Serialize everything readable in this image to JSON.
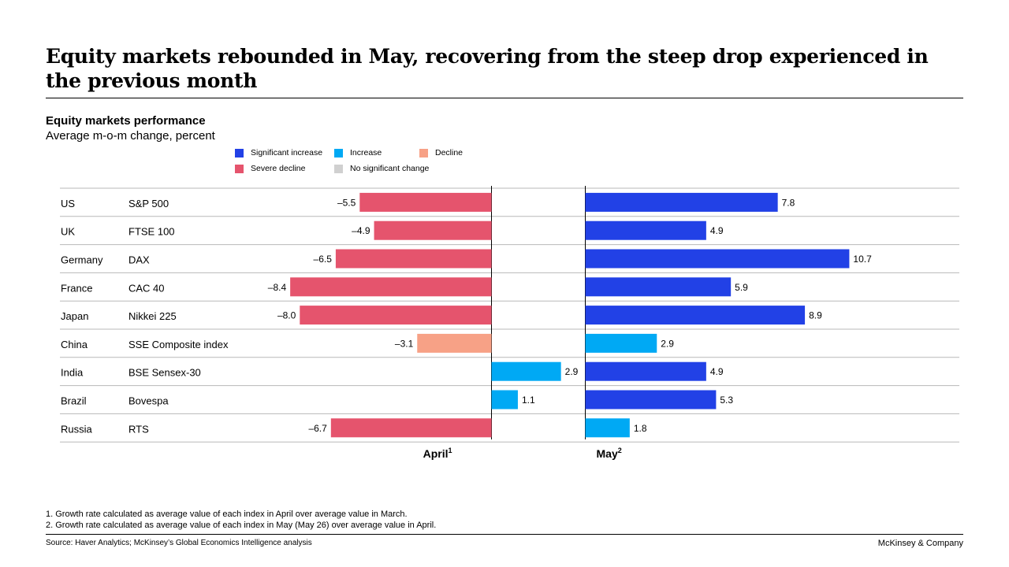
{
  "title": "Equity markets rebounded in May, recovering from the steep drop experienced in the previous month",
  "colors": {
    "significant_increase": "#2241e6",
    "increase": "#00a9f4",
    "decline": "#f7a186",
    "severe_decline": "#e5546d",
    "no_significant_change": "#d0d0d0"
  },
  "legend": [
    {
      "label": "Significant increase",
      "color_key": "significant_increase"
    },
    {
      "label": "Increase",
      "color_key": "increase"
    },
    {
      "label": "Decline",
      "color_key": "decline"
    },
    {
      "label": "Severe decline",
      "color_key": "severe_decline"
    },
    {
      "label": "No significant change",
      "color_key": "no_significant_change"
    }
  ],
  "chart_data": {
    "type": "bar",
    "title": "Equity markets performance",
    "subtitle": "Average m-o-m change, percent",
    "categories": [
      {
        "country": "US",
        "index": "S&P 500"
      },
      {
        "country": "UK",
        "index": "FTSE 100"
      },
      {
        "country": "Germany",
        "index": "DAX"
      },
      {
        "country": "France",
        "index": "CAC 40"
      },
      {
        "country": "Japan",
        "index": "Nikkei 225"
      },
      {
        "country": "China",
        "index": "SSE Composite index"
      },
      {
        "country": "India",
        "index": "BSE Sensex-30"
      },
      {
        "country": "Brazil",
        "index": "Bovespa"
      },
      {
        "country": "Russia",
        "index": "RTS"
      }
    ],
    "series": [
      {
        "name": "April",
        "axis_label": "April",
        "footnote_ref": "1",
        "values": [
          -5.5,
          -4.9,
          -6.5,
          -8.4,
          -8.0,
          -3.1,
          2.9,
          1.1,
          -6.7
        ],
        "value_labels": [
          "–5.5",
          "–4.9",
          "–6.5",
          "–8.4",
          "–8.0",
          "–3.1",
          "2.9",
          "1.1",
          "–6.7"
        ],
        "categories_color": [
          "severe_decline",
          "severe_decline",
          "severe_decline",
          "severe_decline",
          "severe_decline",
          "decline",
          "increase",
          "increase",
          "severe_decline"
        ]
      },
      {
        "name": "May",
        "axis_label": "May",
        "footnote_ref": "2",
        "values": [
          7.8,
          4.9,
          10.7,
          5.9,
          8.9,
          2.9,
          4.9,
          5.3,
          1.8
        ],
        "value_labels": [
          "7.8",
          "4.9",
          "10.7",
          "5.9",
          "8.9",
          "2.9",
          "4.9",
          "5.3",
          "1.8"
        ],
        "categories_color": [
          "significant_increase",
          "significant_increase",
          "significant_increase",
          "significant_increase",
          "significant_increase",
          "increase",
          "significant_increase",
          "significant_increase",
          "increase"
        ]
      }
    ]
  },
  "footnotes": [
    "1. Growth rate calculated as average value of each index in April over average value in March.",
    "2. Growth rate calculated as average value of each index in May (May 26) over average value in April."
  ],
  "source": "Source: Haver Analytics; McKinsey’s Global Economics Intelligence analysis",
  "brand": "McKinsey & Company"
}
